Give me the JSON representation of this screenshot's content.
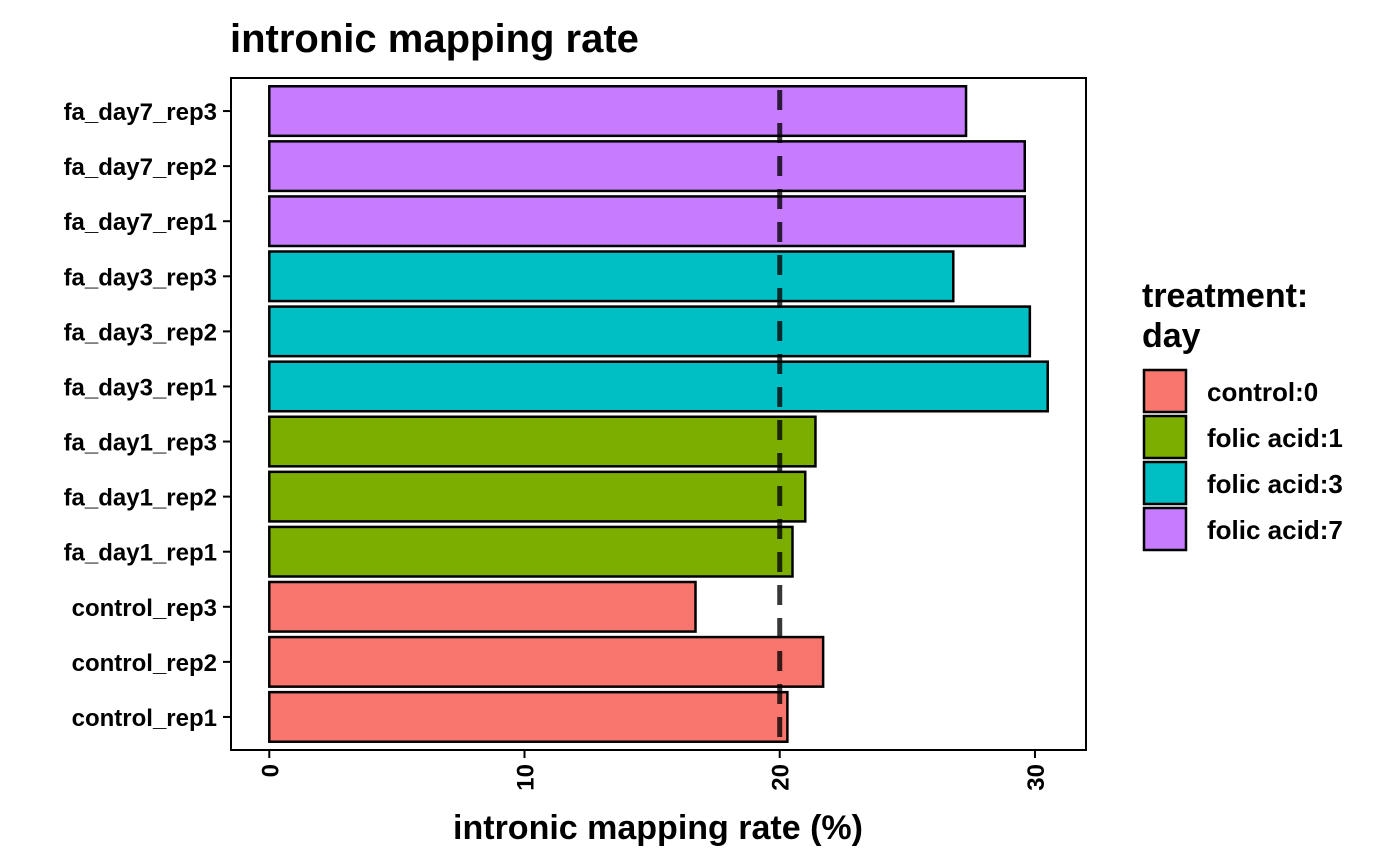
{
  "chart_data": {
    "type": "bar",
    "orientation": "horizontal",
    "title": "intronic mapping rate",
    "xlabel": "intronic mapping rate (%)",
    "ylabel": "",
    "xlim": [
      -1.5,
      32
    ],
    "xticks": [
      0,
      10,
      20,
      30
    ],
    "reference_line": {
      "x": 20,
      "style": "dashed"
    },
    "grid": false,
    "categories": [
      "control_rep1",
      "control_rep2",
      "control_rep3",
      "fa_day1_rep1",
      "fa_day1_rep2",
      "fa_day1_rep3",
      "fa_day3_rep1",
      "fa_day3_rep2",
      "fa_day3_rep3",
      "fa_day7_rep1",
      "fa_day7_rep2",
      "fa_day7_rep3"
    ],
    "values": [
      20.3,
      21.7,
      16.7,
      20.5,
      21.0,
      21.4,
      30.5,
      29.8,
      26.8,
      29.6,
      29.6,
      27.3
    ],
    "groups": [
      "control:0",
      "control:0",
      "control:0",
      "folic acid:1",
      "folic acid:1",
      "folic acid:1",
      "folic acid:3",
      "folic acid:3",
      "folic acid:3",
      "folic acid:7",
      "folic acid:7",
      "folic acid:7"
    ],
    "legend": {
      "title_lines": [
        "treatment:",
        "day"
      ],
      "position": "right",
      "entries": [
        {
          "label": "control:0",
          "color": "#F8766D"
        },
        {
          "label": "folic acid:1",
          "color": "#7CAE00"
        },
        {
          "label": "folic acid:3",
          "color": "#00BFC4"
        },
        {
          "label": "folic acid:7",
          "color": "#C77CFF"
        }
      ]
    }
  }
}
